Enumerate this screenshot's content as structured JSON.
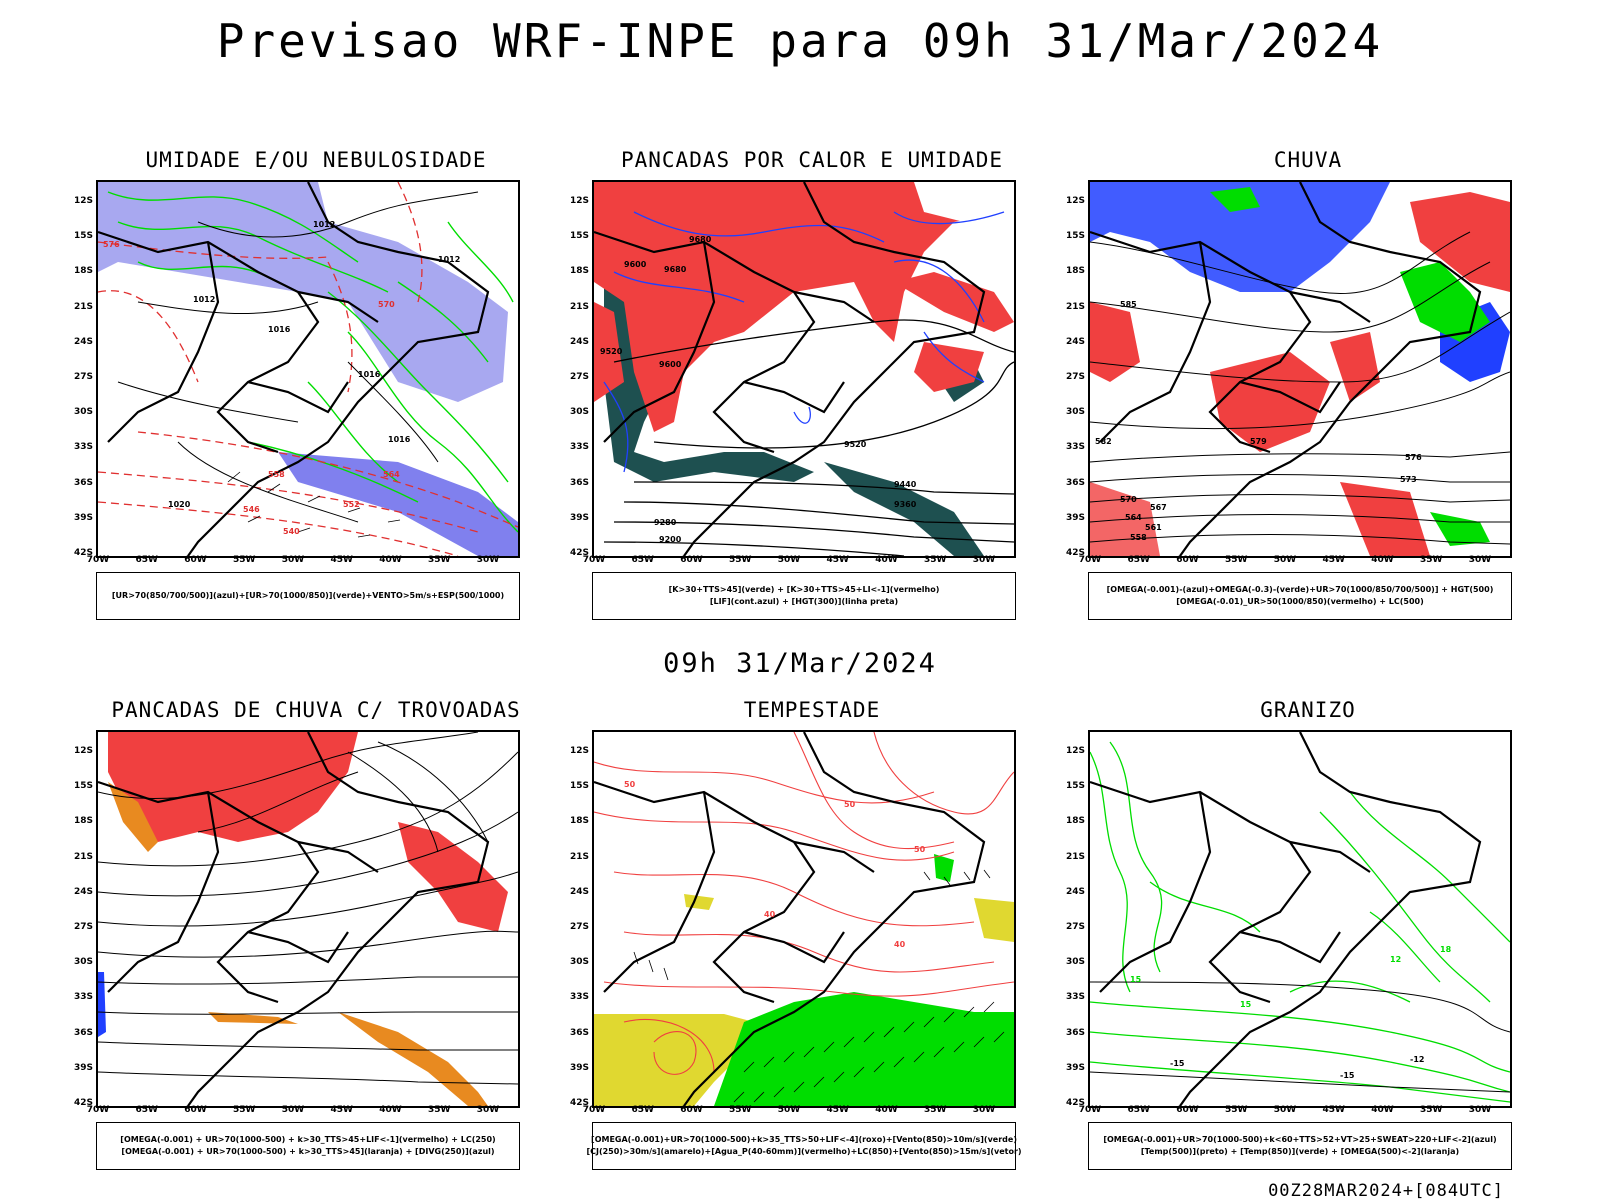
{
  "header": {
    "title": "Previsao WRF-INPE  para 09h 31/Mar/2024"
  },
  "mid_title": "09h 31/Mar/2024",
  "footer": {
    "stamp": "00Z28MAR2024+[084UTC]"
  },
  "axes": {
    "lat": [
      "12S",
      "15S",
      "18S",
      "21S",
      "24S",
      "27S",
      "30S",
      "33S",
      "36S",
      "39S",
      "42S"
    ],
    "lon": [
      "70W",
      "65W",
      "60W",
      "55W",
      "50W",
      "45W",
      "40W",
      "35W",
      "30W"
    ]
  },
  "colors": {
    "green": "#00dd00",
    "red": "#f04040",
    "blue": "#2040ff",
    "lavender": "#a8a8f0",
    "teal": "#1e5050",
    "yellow": "#e0d830",
    "orange": "#e88a20"
  },
  "panels": [
    {
      "id": "umidade",
      "title": "UMIDADE E/OU NEBULOSIDADE",
      "legend": [
        "[UR>70(850/700/500)](azul)+[UR>70(1000/850)](verde)+VENTO>5m/s+ESP(500/1000)"
      ],
      "labels": [
        "1012",
        "1012",
        "1012",
        "1016",
        "1016",
        "1016",
        "1020",
        "576",
        "570",
        "564",
        "558",
        "552",
        "546",
        "540"
      ]
    },
    {
      "id": "pancadas-calor",
      "title": "PANCADAS POR CALOR E UMIDADE",
      "legend": [
        "[K>30+TTS>45](verde) + [K>30+TTS>45+LI<-1](vermelho)",
        "[LIF](cont.azul) + [HGT(300)](linha preta)"
      ],
      "labels": [
        "9680",
        "9680",
        "9600",
        "9600",
        "9520",
        "9520",
        "9440",
        "9360",
        "9280",
        "9200"
      ]
    },
    {
      "id": "chuva",
      "title": "CHUVA",
      "legend": [
        "[OMEGA(-0.001)-(azul)+OMEGA(-0.3)-(verde)+UR>70(1000/850/700/500)] + HGT(500)",
        "[OMEGA(-0.01)_UR>50(1000/850)(vermelho) + LC(500)"
      ],
      "labels": [
        "585",
        "582",
        "579",
        "576",
        "573",
        "570",
        "567",
        "564",
        "561",
        "558"
      ]
    },
    {
      "id": "trovoadas",
      "title": "PANCADAS DE CHUVA C/ TROVOADAS",
      "legend": [
        "[OMEGA(-0.001) + UR>70(1000-500) + k>30_TTS>45+LIF<-1](vermelho) + LC(250)",
        "[OMEGA(-0.001) + UR>70(1000-500) + k>30_TTS>45](laranja) + [DIVG(250)](azul)"
      ],
      "labels": []
    },
    {
      "id": "tempestade",
      "title": "TEMPESTADE",
      "legend": [
        "[OMEGA(-0.001)+UR>70(1000-500)+k>35_TTS>50+LIF<-4](roxo)+[Vento(850)>10m/s](verde)",
        "[CJ(250)>30m/s](amarelo)+[Agua_P(40-60mm)](vermelho)+LC(850)+[Vento(850)>15m/s](vetor)"
      ],
      "labels": [
        "50",
        "50",
        "40",
        "40",
        "50"
      ]
    },
    {
      "id": "granizo",
      "title": "GRANIZO",
      "legend": [
        "[OMEGA(-0.001)+UR>70(1000-500)+k<60+TTS>52+VT>25+SWEAT>220+LIF<-2](azul)",
        "[Temp(500)](preto) + [Temp(850)](verde) + [OMEGA(500)<-2](laranja)"
      ],
      "labels": [
        "-15",
        "-15",
        "-12",
        "15",
        "15",
        "12",
        "18"
      ]
    }
  ]
}
